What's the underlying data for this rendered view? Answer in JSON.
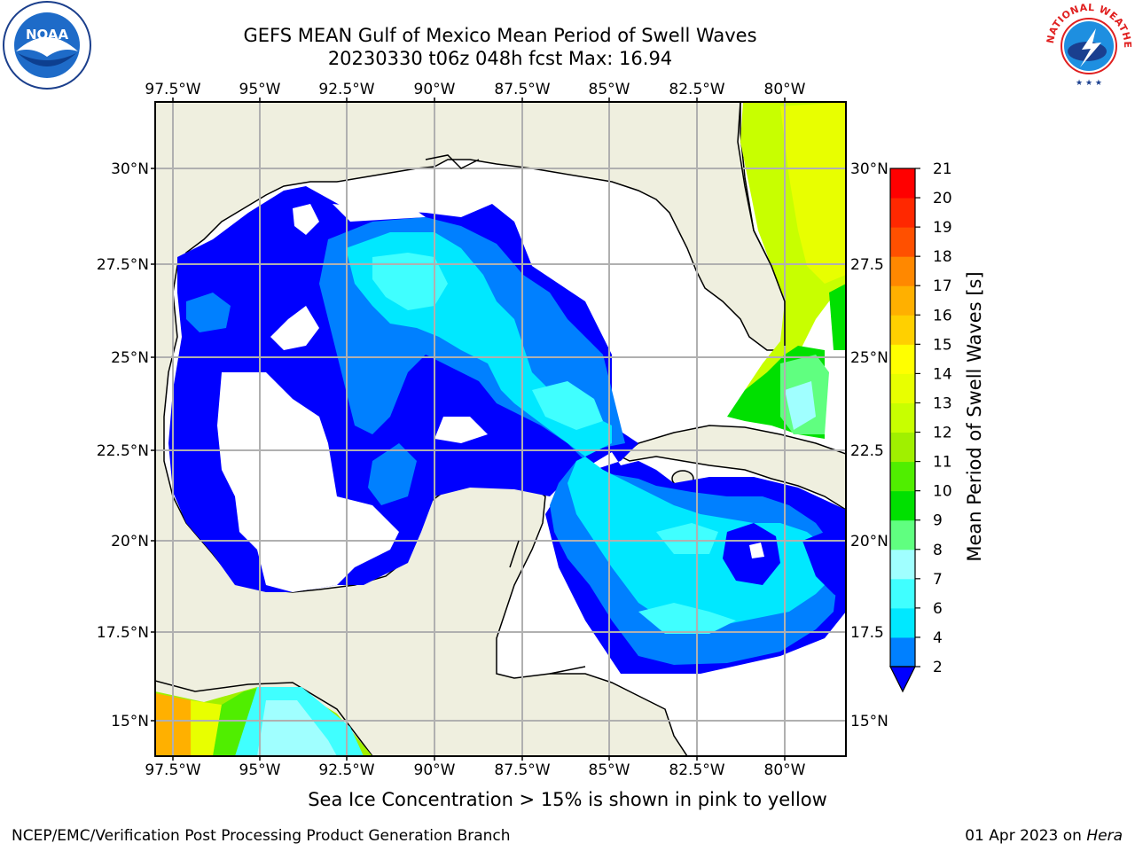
{
  "header": {
    "title_line1": "GEFS MEAN Gulf of Mexico Mean Period of Swell Waves",
    "title_line2": "20230330 t06z 048h fcst   Max: 16.94"
  },
  "logos": {
    "left": "NOAA",
    "right": "NATIONAL WEATHER SERVICE"
  },
  "map": {
    "lon_ticks": [
      "97.5°W",
      "95°W",
      "92.5°W",
      "90°W",
      "87.5°W",
      "85°W",
      "82.5°W",
      "80°W"
    ],
    "lat_ticks": [
      "30°N",
      "27.5°N",
      "25°N",
      "22.5°N",
      "20°N",
      "17.5°N",
      "15°N"
    ],
    "lat_ticks_right": [
      "30°N",
      "27.5",
      "25°N",
      "22.5",
      "20°N",
      "17.5",
      "15°N"
    ],
    "land_color": "#efefdf",
    "grid_color": "#b0b0b0"
  },
  "colorbar": {
    "label": "Mean Period of Swell Waves [s]",
    "levels": [
      "2",
      "4",
      "6",
      "7",
      "8",
      "9",
      "10",
      "11",
      "12",
      "13",
      "14",
      "15",
      "16",
      "17",
      "18",
      "19",
      "20",
      "21"
    ],
    "colors": [
      "#0000ff",
      "#0080ff",
      "#00e8ff",
      "#40ffff",
      "#a0ffff",
      "#60ff80",
      "#00e000",
      "#50ee00",
      "#a0f000",
      "#c8ff00",
      "#e8ff00",
      "#ffff00",
      "#ffd000",
      "#ffb000",
      "#ff8800",
      "#ff5000",
      "#ff2800",
      "#ff0000"
    ]
  },
  "footer": {
    "note": "Sea Ice Concentration > 15% is shown in pink to yellow",
    "credit": "NCEP/EMC/Verification Post Processing Product Generation Branch",
    "date": "01 Apr 2023 on ",
    "machine": "Hera"
  }
}
